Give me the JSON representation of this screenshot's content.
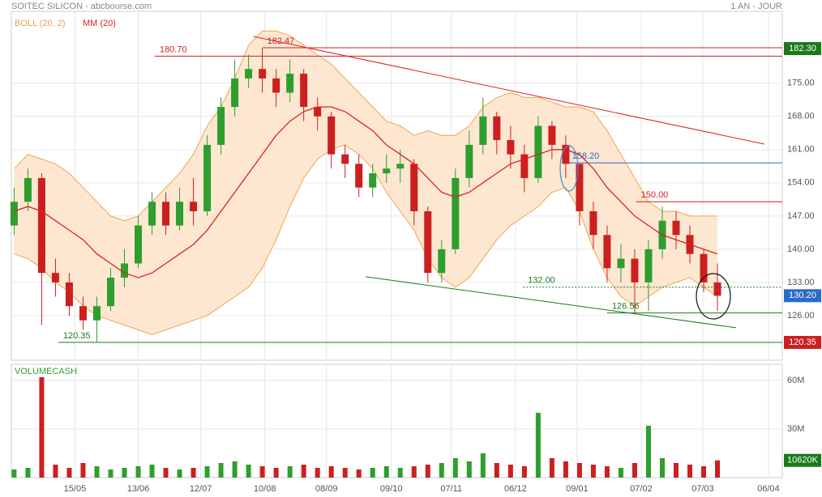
{
  "chart_data": {
    "type": "candlestick",
    "title": "SOITEC SILICON - abcbourse.com",
    "period": "1 AN - JOUR",
    "up_color": "#2e9e2e",
    "down_color": "#cc1f1f",
    "x": [
      0,
      1,
      2,
      3,
      4,
      5,
      6,
      7,
      8,
      9,
      10,
      11,
      12,
      13,
      14,
      15,
      16,
      17,
      18,
      19,
      20,
      21,
      22,
      23,
      24,
      25,
      26,
      27,
      28,
      29,
      30,
      31,
      32,
      33,
      34,
      35,
      36,
      37,
      38,
      39,
      40,
      41,
      42,
      43,
      44,
      45,
      46,
      47,
      48,
      49,
      50,
      51
    ],
    "open": [
      145,
      150,
      155,
      135,
      133,
      128,
      125,
      128,
      134,
      137,
      145,
      150,
      145,
      150,
      148,
      162,
      170,
      176,
      178,
      176,
      173,
      177,
      170,
      168,
      160,
      158,
      153,
      156,
      157,
      158,
      148,
      135,
      140,
      155,
      162,
      168,
      163,
      160,
      155,
      166,
      162,
      158,
      148,
      143,
      136,
      138,
      133,
      140,
      146,
      143,
      139,
      133
    ],
    "high": [
      153,
      157,
      156,
      138,
      135,
      130,
      130,
      136,
      140,
      147,
      152,
      152,
      153,
      155,
      164,
      172,
      180,
      181,
      182.47,
      178,
      180,
      178,
      172,
      169,
      162,
      160,
      158,
      160,
      161,
      159,
      149,
      142,
      157,
      165,
      172,
      169,
      166,
      162,
      168,
      167,
      164,
      158,
      150,
      145,
      141,
      140,
      142,
      149,
      148,
      145,
      140,
      137
    ],
    "low": [
      143,
      148,
      124,
      130,
      126,
      123,
      120.35,
      127,
      132,
      136,
      143,
      143,
      144,
      145,
      147,
      160,
      168,
      174,
      173,
      170,
      171,
      167,
      165,
      157,
      155,
      151,
      151,
      154,
      154,
      145,
      133,
      133,
      139,
      153,
      160,
      160,
      157,
      152,
      154,
      159,
      155,
      145,
      140,
      133,
      133,
      126.56,
      127,
      138,
      140,
      137,
      131,
      127
    ],
    "close": [
      150,
      155,
      135,
      133,
      128,
      125,
      128,
      134,
      137,
      145,
      150,
      145,
      150,
      148,
      162,
      170,
      176,
      178,
      176,
      173,
      177,
      170,
      168,
      160,
      158,
      153,
      156,
      157,
      158,
      148,
      135,
      140,
      155,
      162,
      168,
      163,
      160,
      155,
      166,
      162,
      158,
      148,
      143,
      136,
      138,
      133,
      140,
      146,
      143,
      139,
      133,
      130.2
    ],
    "bollinger": {
      "name": "BOLL (20, 2)",
      "color": "#f0a450",
      "fill": "#fde3c9",
      "upper": [
        157,
        160,
        159,
        158,
        156,
        153,
        150,
        147,
        146,
        147,
        150,
        153,
        156,
        160,
        166,
        170,
        176,
        183,
        186,
        186,
        185,
        183,
        181,
        179,
        176,
        173,
        170,
        167,
        166,
        164,
        165,
        164,
        164,
        166,
        170,
        172,
        173,
        172,
        172,
        171,
        170,
        170,
        169,
        165,
        160,
        155,
        150,
        148,
        148,
        147,
        147,
        147
      ],
      "lower": [
        139,
        138,
        136,
        133,
        131,
        128,
        126,
        125,
        124,
        123,
        122,
        123,
        124,
        125,
        126,
        128,
        130,
        132,
        136,
        142,
        149,
        155,
        159,
        161,
        162,
        160,
        157,
        152,
        148,
        144,
        138,
        134,
        132,
        134,
        138,
        142,
        145,
        147,
        149,
        152,
        153,
        148,
        140,
        134,
        130,
        128,
        130,
        132,
        133,
        134,
        132,
        130
      ]
    },
    "ma": {
      "name": "MM (20)",
      "color": "#e02020",
      "values": [
        148,
        149,
        148,
        146,
        144,
        142,
        139,
        137,
        135,
        134,
        135,
        137,
        139,
        141,
        144,
        148,
        152,
        156,
        160,
        164,
        167,
        169,
        170,
        170,
        169,
        167,
        165,
        162,
        160,
        158,
        155,
        152,
        151,
        152,
        154,
        156,
        158,
        159,
        160,
        161,
        161,
        160,
        157,
        153,
        150,
        147,
        145,
        143,
        142,
        141,
        140,
        139
      ]
    },
    "xlim": [
      -0.2,
      55.7
    ],
    "xticks": [
      {
        "value": 4.41,
        "label": "15/05"
      },
      {
        "value": 9.0,
        "label": "13/06"
      },
      {
        "value": 13.53,
        "label": "12/07"
      },
      {
        "value": 18.18,
        "label": "10/08"
      },
      {
        "value": 22.65,
        "label": "08/09"
      },
      {
        "value": 27.35,
        "label": "09/10"
      },
      {
        "value": 31.7,
        "label": "07/11"
      },
      {
        "value": 36.35,
        "label": "06/12"
      },
      {
        "value": 40.82,
        "label": "09/01"
      },
      {
        "value": 45.47,
        "label": "07/02"
      },
      {
        "value": 49.94,
        "label": "07/03"
      },
      {
        "value": 54.7,
        "label": "06/04"
      }
    ],
    "ylim": [
      116.6,
      190.15
    ],
    "yticks": [
      {
        "value": 126,
        "label": "126.00"
      },
      {
        "value": 133,
        "label": "133.00"
      },
      {
        "value": 140,
        "label": "140.00"
      },
      {
        "value": 147,
        "label": "147.00"
      },
      {
        "value": 154,
        "label": "154.00"
      },
      {
        "value": 161,
        "label": "161.00"
      },
      {
        "value": 168,
        "label": "168.00"
      },
      {
        "value": 175,
        "label": "175.00"
      }
    ],
    "grid": true,
    "levels": [
      {
        "value": 182.47,
        "label": "182.47",
        "from": 18.0,
        "color": "#cc1f1f"
      },
      {
        "value": 180.7,
        "label": "180.70",
        "from": 10.2,
        "color": "#cc1f1f"
      },
      {
        "value": 158.2,
        "label": "158.20",
        "from": 40.1,
        "color": "#2a6ac8"
      },
      {
        "value": 150,
        "label": "150.00",
        "from": 45.1,
        "color": "#cc1f1f"
      },
      {
        "value": 132,
        "label": "132.00",
        "from": 36.9,
        "color": "#1a7a1a",
        "dotted": true
      },
      {
        "value": 126.56,
        "label": "126.56",
        "from": 43.0,
        "color": "#1a7a1a"
      },
      {
        "value": 120.35,
        "label": "120.35",
        "from": 3.2,
        "color": "#1a7a1a"
      }
    ],
    "trendlines": [
      {
        "x": [
          17.35,
          54.4
        ],
        "y": [
          184.86,
          162.17
        ],
        "color": "#dd2222"
      },
      {
        "x": [
          25.5,
          52.35
        ],
        "y": [
          134.19,
          123.44
        ],
        "color": "#1a7a1a"
      }
    ],
    "price_tags": [
      {
        "value": 182.3,
        "label": "182.30",
        "color": "#1a7a1a"
      },
      {
        "value": 130.2,
        "label": "130.20",
        "color": "#2a6ac8"
      },
      {
        "value": 120.35,
        "label": "120.35",
        "color": "#cc1f1f"
      }
    ],
    "volume": {
      "name": "VOLUMECASH",
      "values": [
        5,
        6,
        62,
        8,
        6,
        9,
        7,
        5,
        6,
        7,
        8,
        6,
        5,
        6,
        7,
        9,
        10,
        8,
        7,
        6,
        7,
        8,
        6,
        7,
        6,
        5,
        6,
        7,
        6,
        7,
        8,
        9,
        12,
        10,
        15,
        9,
        8,
        7,
        40,
        12,
        10,
        9,
        8,
        7,
        6,
        9,
        32,
        12,
        9,
        8,
        7,
        10.62
      ],
      "ylim": [
        0,
        70
      ],
      "yticks": [
        {
          "value": 30,
          "label": "30M"
        },
        {
          "value": 60,
          "label": "60M"
        }
      ],
      "tag": {
        "value": 10.62,
        "label": "10620K",
        "color": "#1a7a1a"
      }
    }
  }
}
